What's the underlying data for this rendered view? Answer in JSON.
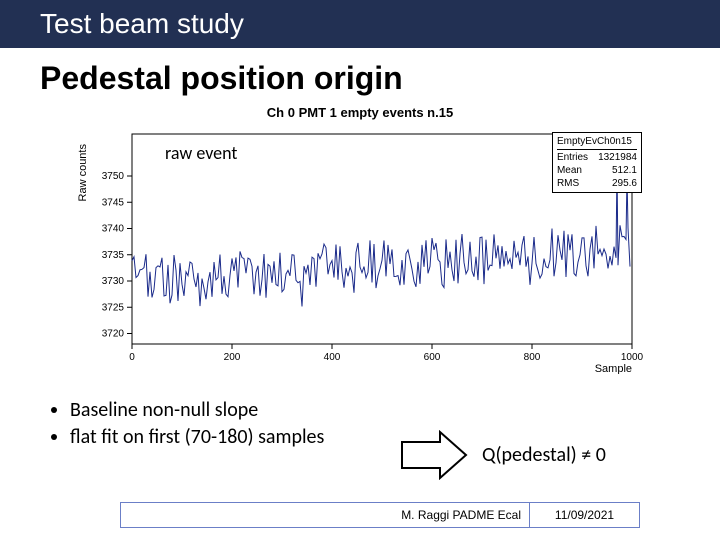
{
  "header": {
    "title": "Test beam study"
  },
  "slide": {
    "title": "Pedestal position origin"
  },
  "chart": {
    "type": "line",
    "title": "Ch 0 PMT 1 empty events n.15",
    "xlabel": "Sample",
    "ylabel": "Raw counts",
    "overlay_label": "raw event",
    "xlim": [
      0,
      1000
    ],
    "xtick_step": 200,
    "ylim": [
      3718,
      3758
    ],
    "yticks": [
      3720,
      3725,
      3730,
      3735,
      3740,
      3745,
      3750
    ],
    "line_color": "#1a2a8a",
    "line_width": 1,
    "background_color": "#ffffff",
    "axis_color": "#000000",
    "stats": {
      "name": "EmptyEvCh0n15",
      "entries": "1321984",
      "mean": "512.1",
      "rms": "295.6"
    },
    "data": {
      "n_points": 80,
      "base": 3730,
      "slope": 0.006,
      "jitter_amp": 5,
      "spikes": [
        [
          970,
          3752
        ],
        [
          990,
          3750
        ]
      ],
      "seed": 42
    }
  },
  "bullets": [
    "Baseline non-null slope",
    "flat fit on first (70-180) samples"
  ],
  "qtext": "Q(pedestal) ≠ 0",
  "footer": {
    "author": "M. Raggi PADME Ecal",
    "date": "11/09/2021"
  }
}
